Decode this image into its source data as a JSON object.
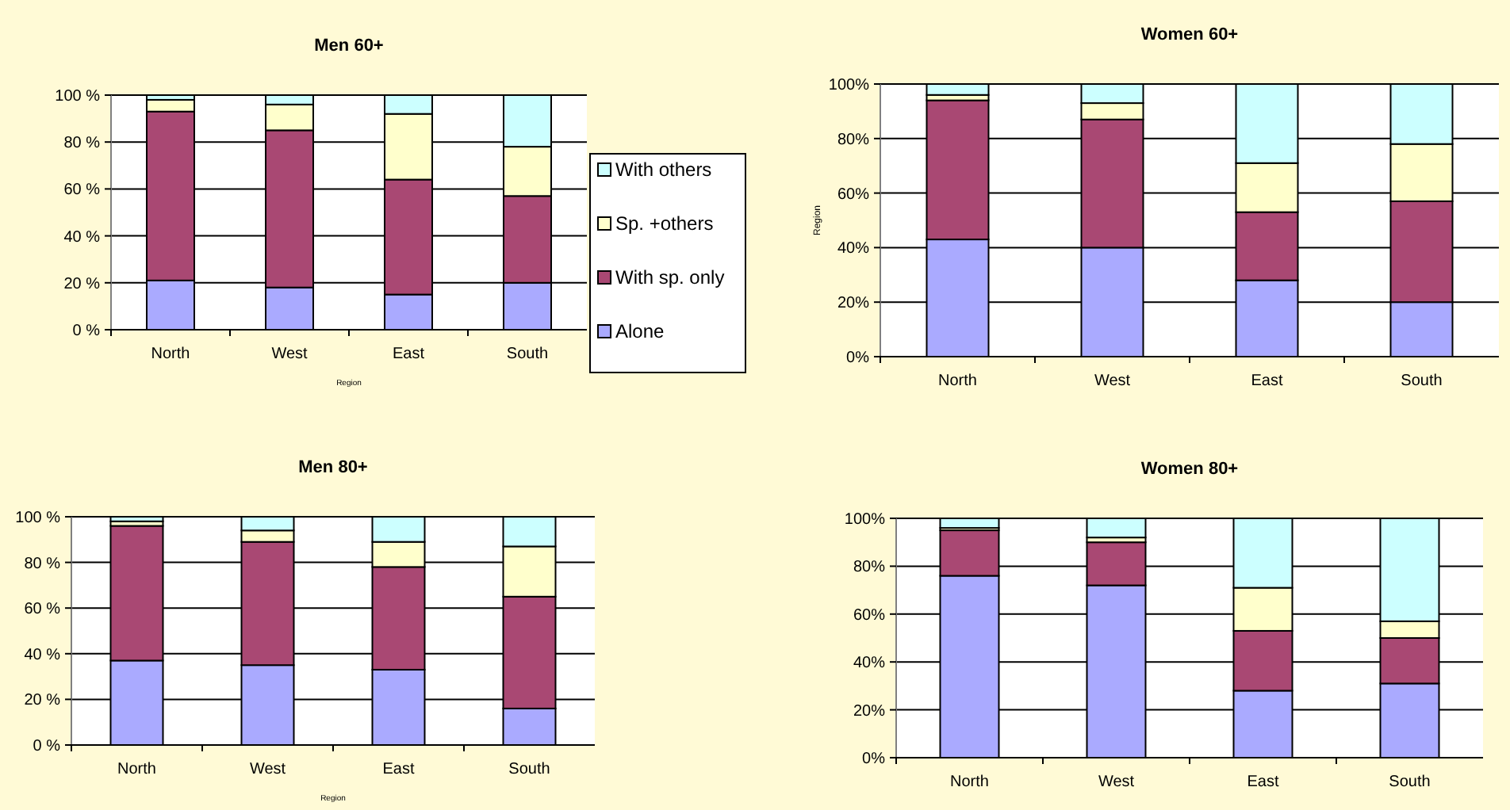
{
  "chart_data": [
    {
      "type": "bar",
      "title": "Men 60+",
      "xlabel": "Region",
      "categories": [
        "North",
        "West",
        "East",
        "South"
      ],
      "stacked": true,
      "ylim": [
        0,
        100
      ],
      "yticks": [
        {
          "value": 0,
          "label": "0 %"
        },
        {
          "value": 20,
          "label": "20 %"
        },
        {
          "value": 40,
          "label": "40 %"
        },
        {
          "value": 60,
          "label": "60 %"
        },
        {
          "value": 80,
          "label": "80 %"
        },
        {
          "value": 100,
          "label": "100 %"
        }
      ],
      "grid": "y",
      "legend": "right",
      "series": [
        {
          "name": "Alone",
          "color": "#aaaaff",
          "values": [
            21,
            18,
            15,
            20
          ]
        },
        {
          "name": "With sp. only",
          "color": "#a94873",
          "values": [
            72,
            67,
            49,
            37
          ]
        },
        {
          "name": "Sp. +others",
          "color": "#ffffcc",
          "values": [
            5,
            11,
            28,
            21
          ]
        },
        {
          "name": "With others",
          "color": "#ccffff",
          "values": [
            2,
            4,
            8,
            22
          ]
        }
      ]
    },
    {
      "type": "bar",
      "title": "Women 60+",
      "ylabel": "Region",
      "categories": [
        "North",
        "West",
        "East",
        "South"
      ],
      "stacked": true,
      "ylim": [
        0,
        100
      ],
      "yticks": [
        {
          "value": 0,
          "label": "0%"
        },
        {
          "value": 20,
          "label": "20%"
        },
        {
          "value": 40,
          "label": "40%"
        },
        {
          "value": 60,
          "label": "60%"
        },
        {
          "value": 80,
          "label": "80%"
        },
        {
          "value": 100,
          "label": "100%"
        }
      ],
      "grid": "y",
      "series": [
        {
          "color": "#aaaaff",
          "values": [
            43,
            40,
            28,
            20
          ]
        },
        {
          "color": "#a94873",
          "values": [
            51,
            47,
            25,
            37
          ]
        },
        {
          "color": "#ffffcc",
          "values": [
            2,
            6,
            18,
            21
          ]
        },
        {
          "color": "#ccffff",
          "values": [
            4,
            7,
            29,
            22
          ]
        }
      ]
    },
    {
      "type": "bar",
      "title": "Men 80+",
      "xlabel": "Region",
      "categories": [
        "North",
        "West",
        "East",
        "South"
      ],
      "stacked": true,
      "ylim": [
        0,
        100
      ],
      "yticks": [
        {
          "value": 0,
          "label": "0 %"
        },
        {
          "value": 20,
          "label": "20 %"
        },
        {
          "value": 40,
          "label": "40 %"
        },
        {
          "value": 60,
          "label": "60 %"
        },
        {
          "value": 80,
          "label": "80 %"
        },
        {
          "value": 100,
          "label": "100 %"
        }
      ],
      "grid": "y",
      "series": [
        {
          "color": "#aaaaff",
          "values": [
            37,
            35,
            33,
            16
          ]
        },
        {
          "color": "#a94873",
          "values": [
            59,
            54,
            45,
            49
          ]
        },
        {
          "color": "#ffffcc",
          "values": [
            2,
            5,
            11,
            22
          ]
        },
        {
          "color": "#ccffff",
          "values": [
            2,
            6,
            11,
            13
          ]
        }
      ]
    },
    {
      "type": "bar",
      "title": "Women 80+",
      "categories": [
        "North",
        "West",
        "East",
        "South"
      ],
      "stacked": true,
      "ylim": [
        0,
        100
      ],
      "yticks": [
        {
          "value": 0,
          "label": "0%"
        },
        {
          "value": 20,
          "label": "20%"
        },
        {
          "value": 40,
          "label": "40%"
        },
        {
          "value": 60,
          "label": "60%"
        },
        {
          "value": 80,
          "label": "80%"
        },
        {
          "value": 100,
          "label": "100%"
        }
      ],
      "grid": "y",
      "series": [
        {
          "color": "#aaaaff",
          "values": [
            76,
            72,
            28,
            31
          ]
        },
        {
          "color": "#a94873",
          "values": [
            19,
            18,
            25,
            19
          ]
        },
        {
          "color": "#ffffcc",
          "values": [
            1,
            2,
            18,
            7
          ]
        },
        {
          "color": "#ccffff",
          "values": [
            4,
            8,
            29,
            43
          ]
        }
      ]
    }
  ]
}
